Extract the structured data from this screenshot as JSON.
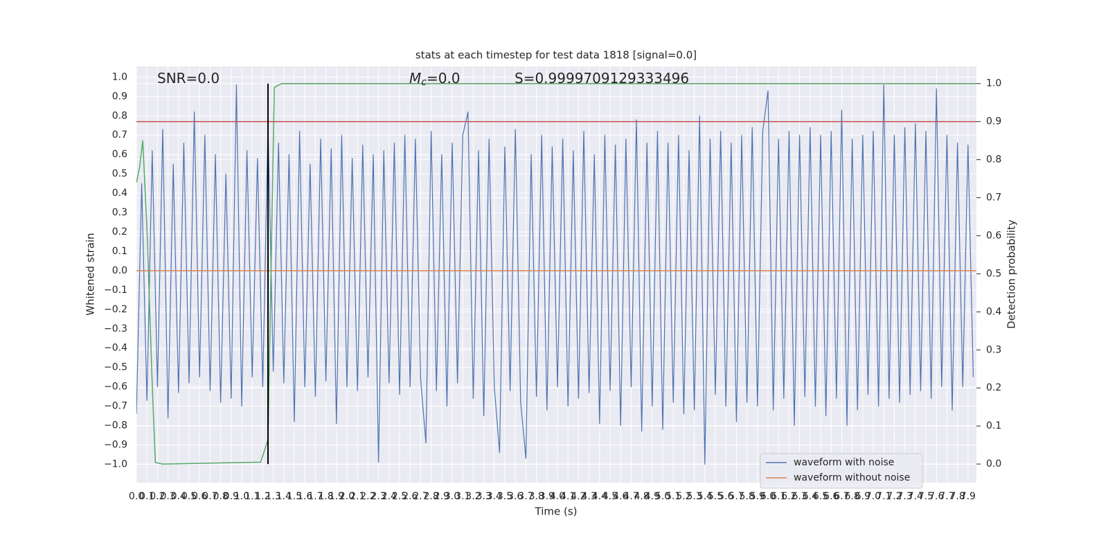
{
  "chart_data": {
    "type": "line",
    "title": "stats at each timestep for test data 1818 [signal=0.0]",
    "xlabel": "Time (s)",
    "ylabel": "Whitened strain",
    "y2label": "Detection probability",
    "xlim": [
      0,
      7.98
    ],
    "ylim": [
      -1.095,
      1.055
    ],
    "y2lim": [
      -0.049,
      1.045
    ],
    "xticks": [
      {
        "value": 0,
        "label": "0.0"
      },
      0.1,
      0.2,
      0.3,
      0.4,
      0.5,
      0.6,
      0.7,
      0.8,
      0.9,
      {
        "value": 1,
        "label": "1.0"
      },
      1.1,
      1.2,
      1.3,
      1.4,
      1.5,
      1.6,
      1.7,
      1.8,
      1.9,
      {
        "value": 2,
        "label": "2.0"
      },
      2.1,
      2.2,
      2.3,
      2.4,
      2.5,
      2.6,
      2.7,
      2.8,
      2.9,
      {
        "value": 3,
        "label": "3.0"
      },
      3.1,
      3.2,
      3.3,
      3.4,
      3.5,
      3.6,
      3.7,
      3.8,
      3.9,
      {
        "value": 4,
        "label": "4.0"
      },
      4.1,
      4.2,
      4.3,
      4.4,
      4.5,
      4.6,
      4.7,
      4.8,
      4.9,
      {
        "value": 5,
        "label": "5.0"
      },
      5.1,
      5.2,
      5.3,
      5.4,
      5.5,
      5.6,
      5.7,
      5.8,
      5.9,
      {
        "value": 6,
        "label": "6.0"
      },
      6.1,
      6.2,
      6.3,
      6.4,
      6.5,
      6.6,
      6.7,
      6.8,
      6.9,
      {
        "value": 7,
        "label": "7.0"
      },
      7.1,
      7.2,
      7.3,
      7.4,
      7.5,
      7.6,
      7.7,
      7.8,
      7.9
    ],
    "yticks": [
      {
        "value": -1,
        "label": "−1.0"
      },
      {
        "value": -0.9,
        "label": "−0.9"
      },
      {
        "value": -0.8,
        "label": "−0.8"
      },
      {
        "value": -0.7,
        "label": "−0.7"
      },
      {
        "value": -0.6,
        "label": "−0.6"
      },
      {
        "value": -0.5,
        "label": "−0.5"
      },
      {
        "value": -0.4,
        "label": "−0.4"
      },
      {
        "value": -0.3,
        "label": "−0.3"
      },
      {
        "value": -0.2,
        "label": "−0.2"
      },
      {
        "value": -0.1,
        "label": "−0.1"
      },
      {
        "value": 0,
        "label": "0.0"
      },
      0.1,
      0.2,
      0.3,
      0.4,
      0.5,
      0.6,
      0.7,
      0.8,
      0.9,
      {
        "value": 1,
        "label": "1.0"
      }
    ],
    "y2ticks": [
      {
        "value": 0,
        "label": "0.0"
      },
      0.1,
      0.2,
      0.3,
      0.4,
      0.5,
      0.6,
      0.7,
      0.8,
      0.9,
      {
        "value": 1,
        "label": "1.0"
      }
    ],
    "grid": true,
    "legend": "lower right",
    "series": [
      {
        "name": "waveform with noise",
        "color": "#4c72b0",
        "x": [
          0,
          0.05,
          0.1,
          0.15,
          0.2,
          0.25,
          0.3,
          0.35,
          0.4,
          0.45,
          0.5,
          0.55,
          0.6,
          0.65,
          0.7,
          0.75,
          0.8,
          0.85,
          0.9,
          0.95,
          1,
          1.05,
          1.1,
          1.15,
          1.2,
          1.25,
          1.3,
          1.35,
          1.4,
          1.45,
          1.5,
          1.55,
          1.6,
          1.65,
          1.7,
          1.75,
          1.8,
          1.85,
          1.9,
          1.95,
          2,
          2.05,
          2.1,
          2.15,
          2.2,
          2.25,
          2.3,
          2.35,
          2.4,
          2.45,
          2.5,
          2.55,
          2.6,
          2.65,
          2.7,
          2.75,
          2.8,
          2.85,
          2.9,
          2.95,
          3,
          3.05,
          3.1,
          3.15,
          3.2,
          3.25,
          3.3,
          3.35,
          3.4,
          3.45,
          3.5,
          3.55,
          3.6,
          3.65,
          3.7,
          3.75,
          3.8,
          3.85,
          3.9,
          3.95,
          4,
          4.05,
          4.1,
          4.15,
          4.2,
          4.25,
          4.3,
          4.35,
          4.4,
          4.45,
          4.5,
          4.55,
          4.6,
          4.65,
          4.7,
          4.75,
          4.8,
          4.85,
          4.9,
          4.95,
          5,
          5.05,
          5.1,
          5.15,
          5.2,
          5.25,
          5.3,
          5.35,
          5.4,
          5.45,
          5.5,
          5.55,
          5.6,
          5.65,
          5.7,
          5.75,
          5.8,
          5.85,
          5.9,
          5.95,
          6,
          6.05,
          6.1,
          6.15,
          6.2,
          6.25,
          6.3,
          6.35,
          6.4,
          6.45,
          6.5,
          6.55,
          6.6,
          6.65,
          6.7,
          6.75,
          6.8,
          6.85,
          6.9,
          6.95,
          7,
          7.05,
          7.1,
          7.15,
          7.2,
          7.25,
          7.3,
          7.35,
          7.4,
          7.45,
          7.5,
          7.55,
          7.6,
          7.65,
          7.7,
          7.75,
          7.8,
          7.85,
          7.9,
          7.95
        ],
        "values": [
          -0.74,
          0.45,
          -0.67,
          0.62,
          -0.6,
          0.73,
          -0.76,
          0.55,
          -0.63,
          0.66,
          -0.58,
          0.82,
          -0.55,
          0.7,
          -0.62,
          0.6,
          -0.68,
          0.5,
          -0.66,
          0.96,
          -0.7,
          0.62,
          -0.55,
          0.58,
          -0.6,
          0.75,
          -0.52,
          0.66,
          -0.58,
          0.6,
          -0.78,
          0.72,
          -0.6,
          0.55,
          -0.65,
          0.68,
          -0.57,
          0.63,
          -0.79,
          0.7,
          -0.6,
          0.58,
          -0.62,
          0.65,
          -0.55,
          0.6,
          -0.99,
          0.62,
          -0.58,
          0.66,
          -0.64,
          0.7,
          -0.6,
          0.68,
          -0.56,
          -0.89,
          0.72,
          -0.62,
          0.6,
          -0.7,
          0.66,
          -0.58,
          0.7,
          0.82,
          -0.66,
          0.62,
          -0.75,
          0.68,
          -0.6,
          -0.94,
          0.64,
          -0.62,
          0.73,
          -0.68,
          -0.97,
          0.6,
          -0.65,
          0.7,
          -0.72,
          0.64,
          -0.6,
          0.68,
          -0.7,
          0.62,
          -0.66,
          0.72,
          -0.63,
          0.6,
          -0.79,
          0.7,
          -0.62,
          0.65,
          -0.8,
          0.68,
          -0.6,
          0.78,
          -0.83,
          0.66,
          -0.7,
          0.72,
          -0.82,
          0.66,
          -0.68,
          0.7,
          -0.74,
          0.62,
          -0.72,
          0.8,
          -1.0,
          0.68,
          -0.64,
          0.72,
          -0.7,
          0.66,
          -0.78,
          0.7,
          -0.68,
          0.74,
          -0.7,
          0.72,
          0.93,
          -0.72,
          0.68,
          -0.66,
          0.72,
          -0.8,
          0.7,
          -0.65,
          0.74,
          -0.7,
          0.7,
          -0.75,
          0.72,
          -0.66,
          0.83,
          -0.8,
          0.68,
          -0.72,
          0.7,
          -0.64,
          0.72,
          -0.7,
          0.96,
          -0.66,
          0.7,
          -0.68,
          0.74,
          -0.64,
          0.76,
          -0.62,
          0.72,
          -0.66,
          0.94,
          -0.6,
          0.7,
          -0.72,
          0.66,
          -0.6,
          0.65,
          -0.55
        ]
      },
      {
        "name": "waveform without noise",
        "color": "#dd8452",
        "x": [
          0,
          7.98
        ],
        "values": [
          0,
          0
        ]
      },
      {
        "color": "#55a868",
        "axis": "y2",
        "x": [
          0,
          0.03,
          0.06,
          0.1,
          0.15,
          0.18,
          0.25,
          1.18,
          1.25,
          1.31,
          1.38,
          7.98
        ],
        "values": [
          0.74,
          0.78,
          0.85,
          0.62,
          0.21,
          0.004,
          0,
          0.005,
          0.064,
          0.99,
          1.0,
          1.0
        ]
      }
    ],
    "hlines": [
      {
        "y": 0.9,
        "axis": "y2",
        "color": "#c44e52"
      }
    ],
    "vlines": [
      {
        "x": 1.25,
        "axis": "y2",
        "ymin": 0,
        "ymax": 1,
        "color": "#000000"
      }
    ],
    "annotations": [
      {
        "text": "SNR=0.0"
      },
      {
        "text": "M",
        "sub": "c",
        "suffix": "=0.0"
      },
      {
        "text": "S=0.9999709129333496"
      }
    ]
  }
}
